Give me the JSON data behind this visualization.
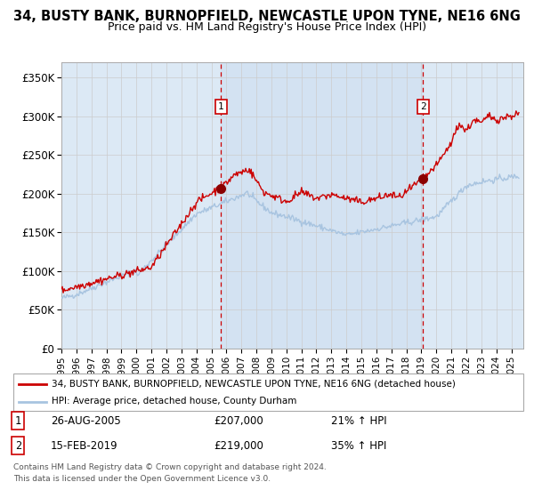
{
  "title": "34, BUSTY BANK, BURNOPFIELD, NEWCASTLE UPON TYNE, NE16 6NG",
  "subtitle": "Price paid vs. HM Land Registry's House Price Index (HPI)",
  "background_color": "#ffffff",
  "plot_bg_color": "#dce9f5",
  "hpi_line_color": "#a8c4e0",
  "price_line_color": "#cc0000",
  "marker_color": "#8b0000",
  "vline_color": "#cc0000",
  "event1_x": 2005.65,
  "event1_y": 207000,
  "event1_label": "1",
  "event1_date": "26-AUG-2005",
  "event1_price": "£207,000",
  "event1_hpi": "21% ↑ HPI",
  "event2_x": 2019.12,
  "event2_y": 219000,
  "event2_label": "2",
  "event2_date": "15-FEB-2019",
  "event2_price": "£219,000",
  "event2_hpi": "35% ↑ HPI",
  "ylim": [
    0,
    370000
  ],
  "xlim_start": 1995.0,
  "xlim_end": 2025.8,
  "yticks": [
    0,
    50000,
    100000,
    150000,
    200000,
    250000,
    300000,
    350000
  ],
  "ytick_labels": [
    "£0",
    "£50K",
    "£100K",
    "£150K",
    "£200K",
    "£250K",
    "£300K",
    "£350K"
  ],
  "xticks": [
    1995,
    1996,
    1997,
    1998,
    1999,
    2000,
    2001,
    2002,
    2003,
    2004,
    2005,
    2006,
    2007,
    2008,
    2009,
    2010,
    2011,
    2012,
    2013,
    2014,
    2015,
    2016,
    2017,
    2018,
    2019,
    2020,
    2021,
    2022,
    2023,
    2024,
    2025
  ],
  "legend_line1": "34, BUSTY BANK, BURNOPFIELD, NEWCASTLE UPON TYNE, NE16 6NG (detached house)",
  "legend_line2": "HPI: Average price, detached house, County Durham",
  "footnote_line1": "Contains HM Land Registry data © Crown copyright and database right 2024.",
  "footnote_line2": "This data is licensed under the Open Government Licence v3.0.",
  "shaded_region_start": 2005.65,
  "shaded_region_end": 2019.12
}
